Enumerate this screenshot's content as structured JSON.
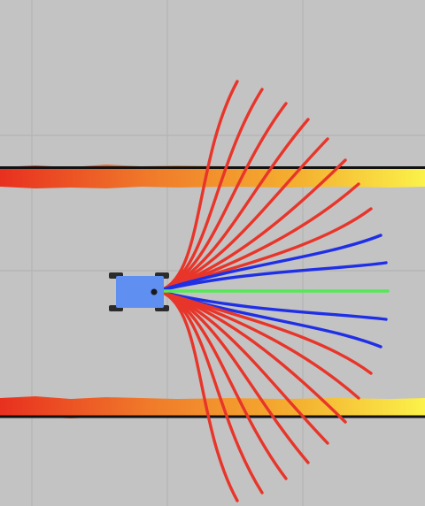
{
  "view": {
    "background": "#c3c3c3",
    "grid_color": "#b3b3b3",
    "grid": true
  },
  "robot": {
    "name": "robot-base",
    "body_color": "#5f8ff0",
    "wheel_color": "#2b2b2b",
    "sensor_color": "#1a1a1a"
  },
  "obstacles": {
    "gradient": [
      "#e8301f",
      "#f07a2a",
      "#f4b030",
      "#fbf24a"
    ],
    "edge_color": "#111111",
    "walls": [
      "upper-wall",
      "lower-wall"
    ]
  },
  "trajectories": {
    "colors": {
      "colliding": "#e8352a",
      "safe": "#1f2fe6",
      "selected": "#55e855"
    },
    "upper": [
      {
        "state": "colliding"
      },
      {
        "state": "colliding"
      },
      {
        "state": "colliding"
      },
      {
        "state": "colliding"
      },
      {
        "state": "colliding"
      },
      {
        "state": "colliding"
      },
      {
        "state": "colliding"
      },
      {
        "state": "colliding"
      },
      {
        "state": "safe"
      },
      {
        "state": "safe"
      }
    ],
    "center": {
      "state": "selected"
    },
    "lower": [
      {
        "state": "safe"
      },
      {
        "state": "safe"
      },
      {
        "state": "colliding"
      },
      {
        "state": "colliding"
      },
      {
        "state": "colliding"
      },
      {
        "state": "colliding"
      },
      {
        "state": "colliding"
      },
      {
        "state": "colliding"
      },
      {
        "state": "colliding"
      },
      {
        "state": "colliding"
      }
    ]
  }
}
